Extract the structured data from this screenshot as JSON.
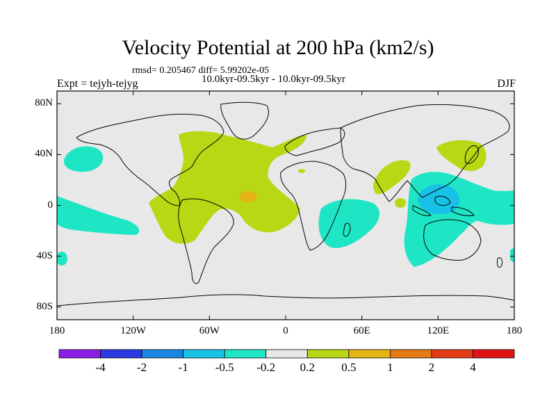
{
  "chart_data": {
    "type": "filled-contour-map",
    "title": "Velocity Potential at 200 hPa (km2/s)",
    "stats_line": "rmsd= 0.205467 diff= 5.99202e-05",
    "periods": "10.0kyr-09.5kyr - 10.0kyr-09.5kyr",
    "left_label": "Expt = tejyh-tejyg",
    "right_label": "DJF",
    "xlim": [
      -180,
      180
    ],
    "ylim": [
      -90,
      90
    ],
    "x_ticks": [
      {
        "value": -180,
        "label": "180"
      },
      {
        "value": -120,
        "label": "120W"
      },
      {
        "value": -60,
        "label": "60W"
      },
      {
        "value": 0,
        "label": "0"
      },
      {
        "value": 60,
        "label": "60E"
      },
      {
        "value": 120,
        "label": "120E"
      },
      {
        "value": 180,
        "label": "180"
      }
    ],
    "y_ticks": [
      {
        "value": 80,
        "label": "80N"
      },
      {
        "value": 40,
        "label": "40N"
      },
      {
        "value": 0,
        "label": "0"
      },
      {
        "value": -40,
        "label": "40S"
      },
      {
        "value": -80,
        "label": "80S"
      }
    ],
    "contour_levels": [
      "-4",
      "-2",
      "-1",
      "-0.5",
      "-0.2",
      "0.2",
      "0.5",
      "1",
      "2",
      "4"
    ],
    "colorbar_colors": [
      "#8c1ee6",
      "#2a3ae0",
      "#1a86e0",
      "#18c2e6",
      "#1ee6c4",
      "#e8e8e8",
      "#b9d714",
      "#e4b414",
      "#e47a14",
      "#e43c14",
      "#e01414"
    ],
    "regions": [
      {
        "name": "atlantic-americas-positive",
        "level_range": "0.2 to 0.5",
        "color": "#b9d714"
      },
      {
        "name": "central-atlantic-max",
        "level_range": "0.5 to 1",
        "color": "#e4b414"
      },
      {
        "name": "maritime-continent-negative",
        "level_range": "-0.5 to -0.2",
        "color": "#1ee6c4"
      },
      {
        "name": "maritime-continent-core",
        "level_range": "-1 to -0.5",
        "color": "#18c2e6"
      },
      {
        "name": "indian-ocean-negative",
        "level_range": "-0.5 to -0.2",
        "color": "#1ee6c4"
      },
      {
        "name": "north-pacific-negative",
        "level_range": "-0.5 to -0.2",
        "color": "#1ee6c4"
      },
      {
        "name": "east-pacific-negative",
        "level_range": "-0.5 to -0.2",
        "color": "#1ee6c4"
      },
      {
        "name": "east-asia-positive",
        "level_range": "0.2 to 0.5",
        "color": "#b9d714"
      },
      {
        "name": "india-positive",
        "level_range": "0.2 to 0.5",
        "color": "#b9d714"
      }
    ]
  }
}
